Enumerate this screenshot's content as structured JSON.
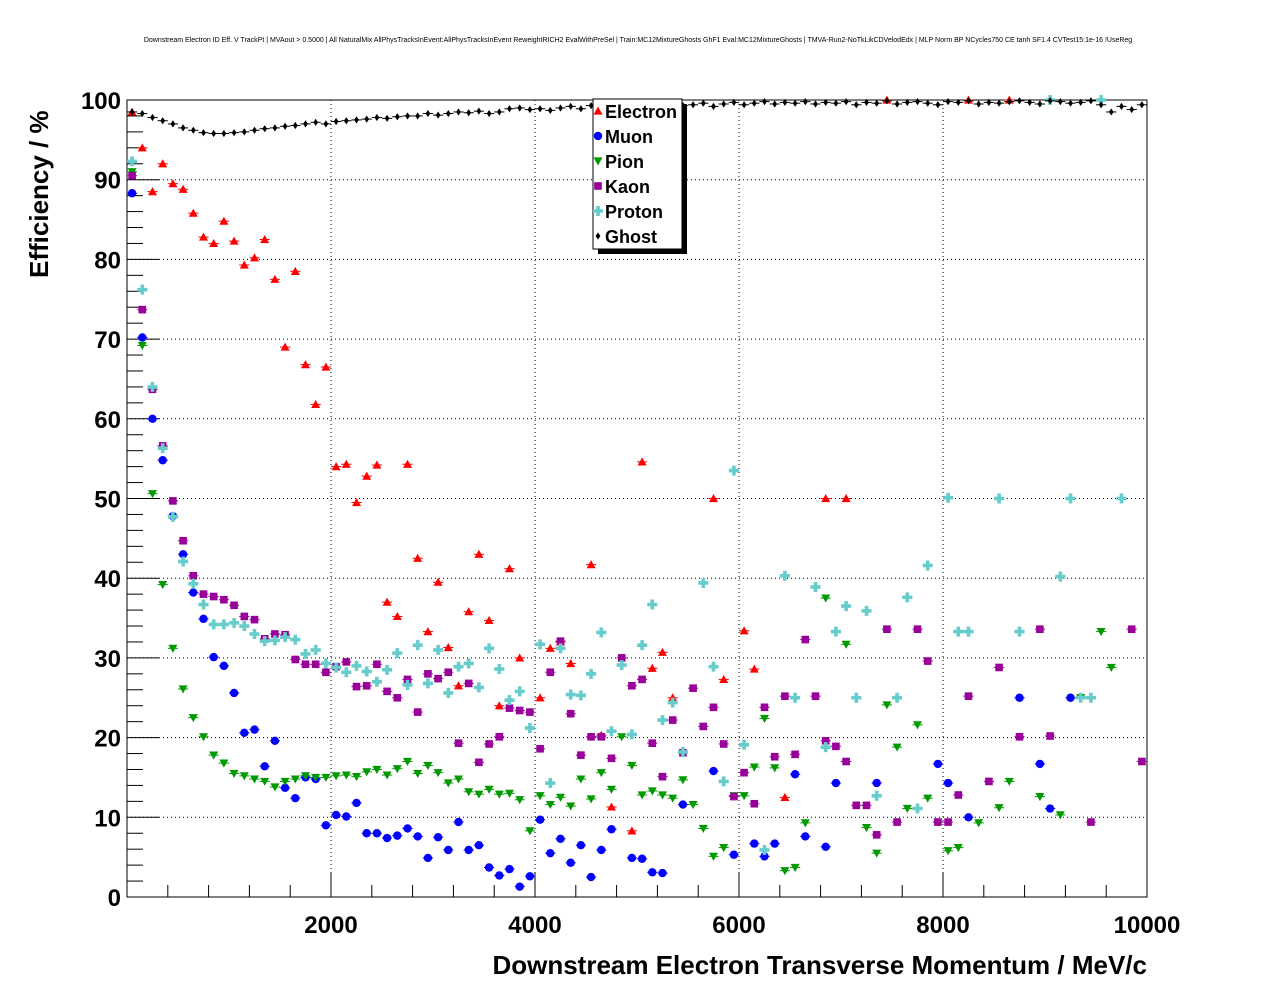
{
  "chart_data": {
    "type": "scatter",
    "title": "Downstream Electron ID Eff. V TrackPt | MVAout > 0.5000 | All NaturalMix AllPhysTracksInEvent:AllPhysTracksInEvent ReweightRICH2 EvalWithPreSel | Train:MC12MixtureGhosts GhF1 Eval:MC12MixtureGhosts | TMVA-Run2-NoTkLikCDVelodEdx | MLP Norm BP NCycles750 CE tanh SF1.4 CVTest15:1e-16 !UseReg",
    "xlabel": "Downstream Electron Transverse Momentum / MeV/c",
    "ylabel": "Efficiency / %",
    "xlim": [
      0,
      10000
    ],
    "ylim": [
      0,
      100
    ],
    "xticks": [
      2000,
      4000,
      6000,
      8000,
      10000
    ],
    "yticks": [
      0,
      10,
      20,
      30,
      40,
      50,
      60,
      70,
      80,
      90,
      100
    ],
    "grid": true,
    "legend_position": "top-center",
    "bin_width": 100,
    "x_first_bin_center": 50,
    "series": [
      {
        "name": "Electron",
        "color": "#ff0000",
        "marker": "triangle-up",
        "values": [
          98.5,
          94,
          88.5,
          92,
          89.5,
          88.8,
          85.8,
          82.8,
          82,
          84.8,
          82.3,
          79.3,
          80.2,
          82.5,
          77.5,
          69,
          78.5,
          66.8,
          61.8,
          66.5,
          54,
          54.3,
          49.5,
          52.8,
          54.2,
          37,
          35.2,
          54.3,
          42.5,
          33.3,
          39.5,
          31.3,
          26.5,
          35.8,
          43,
          34.7,
          24,
          41.2,
          30,
          null,
          25,
          31.2,
          32,
          29.3,
          null,
          41.7,
          20.3,
          11.3,
          null,
          8.3,
          54.6,
          28.7,
          30.7,
          25,
          null,
          null,
          null,
          50,
          27.3,
          null,
          33.4,
          28.6,
          null,
          null,
          12.5,
          null,
          null,
          null,
          50,
          null,
          50,
          null,
          null,
          null,
          100,
          null,
          null,
          null,
          null,
          null,
          null,
          null,
          100,
          null,
          null,
          null,
          100,
          null,
          null,
          null,
          null,
          null,
          null,
          null,
          null,
          null,
          null,
          null,
          null,
          null
        ]
      },
      {
        "name": "Muon",
        "color": "#0000ff",
        "marker": "circle",
        "values": [
          88.3,
          70.2,
          60,
          54.8,
          47.8,
          43,
          38.2,
          34.9,
          30.1,
          29,
          25.6,
          20.6,
          21,
          16.4,
          19.6,
          13.7,
          12.4,
          15,
          14.8,
          9,
          10.3,
          10.1,
          11.8,
          8,
          8,
          7.4,
          7.7,
          8.6,
          7.6,
          4.9,
          7.5,
          5.9,
          9.4,
          5.9,
          6.5,
          3.7,
          2.7,
          3.5,
          1.3,
          2.6,
          9.7,
          5.5,
          7.3,
          4.3,
          6.5,
          2.5,
          5.9,
          8.5,
          null,
          4.9,
          4.8,
          3.1,
          3,
          null,
          11.6,
          null,
          null,
          15.8,
          null,
          5.3,
          null,
          6.7,
          5.1,
          6.7,
          null,
          15.4,
          7.6,
          null,
          6.3,
          14.3,
          null,
          null,
          null,
          14.3,
          null,
          null,
          null,
          null,
          null,
          16.7,
          14.3,
          null,
          10,
          null,
          null,
          null,
          null,
          25,
          null,
          16.7,
          11.1,
          null,
          25,
          null,
          null,
          null,
          null,
          null,
          null,
          null
        ]
      },
      {
        "name": "Pion",
        "color": "#009a00",
        "marker": "triangle-down",
        "values": [
          91,
          69.2,
          50.6,
          39.2,
          31.2,
          26.1,
          22.5,
          20.1,
          17.8,
          16.8,
          15.5,
          15.2,
          14.8,
          14.5,
          13.8,
          14.5,
          14.8,
          15.2,
          15,
          15,
          15.2,
          15.3,
          15.1,
          15.7,
          16,
          15.3,
          16.1,
          17,
          15.5,
          16.5,
          15.6,
          14.3,
          14.8,
          13.2,
          12.9,
          13.5,
          12.9,
          13,
          12.2,
          8.3,
          12.7,
          11.6,
          12.5,
          11.4,
          14.8,
          12.3,
          15.6,
          13.5,
          20.1,
          16.5,
          12.8,
          13.3,
          12.8,
          12.4,
          14.7,
          11.6,
          8.6,
          5.1,
          6.2,
          12.7,
          12.7,
          16.3,
          22.4,
          16.2,
          3.3,
          3.7,
          9.3,
          null,
          37.5,
          null,
          31.7,
          null,
          8.7,
          5.5,
          24.1,
          18.8,
          11.1,
          21.6,
          12.4,
          9.4,
          5.8,
          6.2,
          null,
          9.3,
          null,
          11.2,
          14.5,
          null,
          null,
          12.6,
          null,
          10.3,
          null,
          25,
          null,
          33.3,
          28.8,
          null,
          null,
          null
        ]
      },
      {
        "name": "Kaon",
        "color": "#990099",
        "marker": "square",
        "values": [
          90.5,
          73.7,
          63.7,
          56.6,
          49.7,
          44.7,
          40.3,
          38,
          37.7,
          37.3,
          36.6,
          35.2,
          34.8,
          32.4,
          33,
          32.9,
          29.8,
          29.2,
          29.2,
          28.2,
          28.9,
          29.5,
          26.4,
          26.5,
          29.2,
          25.8,
          25,
          27.3,
          23.2,
          28,
          27.4,
          28.2,
          19.3,
          26.8,
          16.9,
          19.2,
          20.1,
          23.7,
          23.4,
          23.2,
          18.6,
          28.2,
          32.1,
          23,
          17.8,
          20.1,
          20.1,
          17.4,
          30,
          26.5,
          27.3,
          19.3,
          15.1,
          22.2,
          18.1,
          26.2,
          21.4,
          23.8,
          19.2,
          12.6,
          15.6,
          11.7,
          23.8,
          17.6,
          25.2,
          17.9,
          32.3,
          25.2,
          19.6,
          18.9,
          17,
          11.5,
          11.5,
          7.8,
          33.6,
          9.4,
          null,
          33.6,
          29.6,
          9.4,
          9.4,
          12.8,
          25.2,
          null,
          14.5,
          28.8,
          null,
          20.1,
          null,
          33.6,
          20.2,
          null,
          null,
          null,
          9.4,
          null,
          null,
          null,
          33.6,
          17
        ]
      },
      {
        "name": "Proton",
        "color": "#66cccc",
        "marker": "cross",
        "values": [
          92.3,
          76.2,
          64,
          56.3,
          47.7,
          42.1,
          39.3,
          36.7,
          34.2,
          34.2,
          34.4,
          34,
          33,
          32.1,
          32.2,
          32.6,
          32.3,
          30.5,
          31,
          29.3,
          28.8,
          28.2,
          29,
          28.3,
          27,
          28.5,
          30.6,
          26.6,
          31.6,
          26.8,
          31,
          25.6,
          28.9,
          29.3,
          26.3,
          31.2,
          28.6,
          24.7,
          25.8,
          21.2,
          31.7,
          14.3,
          31.2,
          25.4,
          25.3,
          28,
          33.2,
          20.8,
          29.1,
          20.4,
          31.6,
          36.7,
          22.2,
          24.4,
          18.2,
          null,
          39.4,
          28.9,
          14.5,
          53.5,
          19.1,
          null,
          5.9,
          null,
          40.3,
          25,
          null,
          38.9,
          18.8,
          33.3,
          36.5,
          25,
          35.9,
          12.7,
          null,
          25,
          37.6,
          11.1,
          41.6,
          null,
          50.1,
          33.3,
          33.3,
          null,
          null,
          50,
          null,
          33.3,
          null,
          null,
          100,
          40.2,
          50,
          25,
          25,
          100,
          null,
          50,
          null,
          null
        ]
      },
      {
        "name": "Ghost",
        "color": "#000000",
        "marker": "diamond",
        "values": [
          98.5,
          98.3,
          97.8,
          97.4,
          97,
          96.5,
          96.2,
          95.9,
          95.8,
          95.8,
          95.9,
          96,
          96.2,
          96.4,
          96.5,
          96.7,
          96.8,
          97,
          97.2,
          97,
          97.3,
          97.4,
          97.5,
          97.6,
          97.8,
          97.7,
          97.9,
          98,
          98,
          98.3,
          98.1,
          98.3,
          98.5,
          98.4,
          98.6,
          98.3,
          98.5,
          98.9,
          99,
          98.8,
          98.9,
          98.7,
          99,
          99.2,
          98.9,
          99.3,
          99,
          99.1,
          99.2,
          99.3,
          99,
          99.4,
          99.2,
          99.5,
          99.3,
          99.4,
          99.6,
          99.2,
          99.5,
          99.7,
          99.4,
          99.6,
          99.8,
          99.5,
          99.7,
          99.6,
          99.8,
          99.5,
          99.7,
          99.6,
          99.8,
          99.4,
          99.7,
          99.6,
          99.9,
          99.5,
          99.7,
          99.8,
          99.6,
          99.4,
          99.8,
          99.7,
          99.9,
          99.5,
          99.7,
          99.6,
          99.8,
          99.9,
          99.7,
          99.5,
          99.9,
          99.8,
          99.6,
          99.7,
          99.9,
          99.4,
          98.5,
          99.2,
          98.8,
          99.4
        ]
      }
    ]
  }
}
